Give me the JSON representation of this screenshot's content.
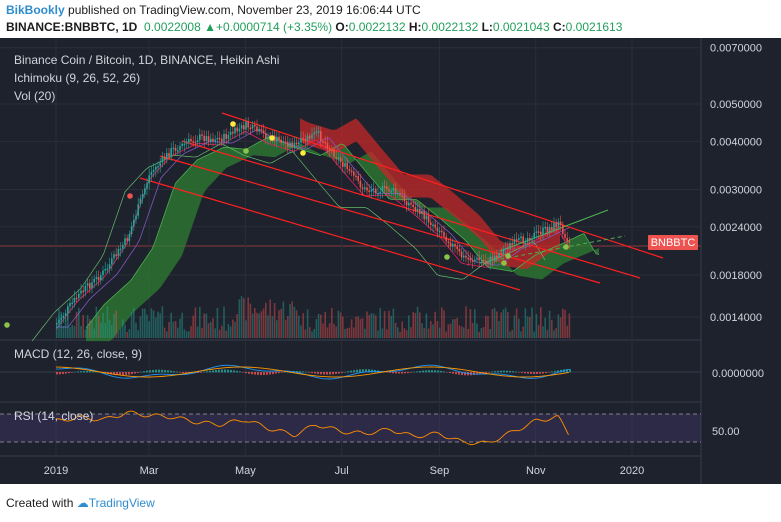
{
  "header": {
    "author": "BikBookly",
    "published_text": "published on TradingView.com, November 23, 2019 16:06:44 UTC",
    "symbol_line": "BINANCE:BNBBTC, 1D",
    "price": "0.0022008",
    "change": "+0.0000714 (+3.35%)",
    "open_label": "O:",
    "open": "0.0022132",
    "high_label": "H:",
    "high": "0.0022132",
    "low_label": "L:",
    "low": "0.0021043",
    "close_label": "C:",
    "close": "0.0021613"
  },
  "footer": {
    "created_with": "Created with",
    "brand": "TradingView"
  },
  "colors": {
    "background": "#1e222d",
    "bull": "#26a69a",
    "bear": "#ef5350",
    "channel": "#ff2020",
    "accent_green": "#27ae60"
  },
  "chart_data": {
    "type": "line",
    "legend": [
      "Binance Coin / Bitcoin, 1D, BINANCE, Heikin Ashi",
      "Ichimoku (9, 26, 52, 26)",
      "Vol (20)"
    ],
    "price_tag": "BNBBTC",
    "y_ticks": [
      "0.0070000",
      "0.0050000",
      "0.0040000",
      "0.0030000",
      "0.0024000",
      "0.0018000",
      "0.0014000"
    ],
    "x_ticks": [
      "2019",
      "Mar",
      "May",
      "Jul",
      "Sep",
      "Nov",
      "2020"
    ],
    "price_series": {
      "name": "BNBBTC",
      "x": [
        "2019-01-01",
        "2019-01-15",
        "2019-02-01",
        "2019-02-15",
        "2019-03-01",
        "2019-03-15",
        "2019-04-01",
        "2019-04-15",
        "2019-05-01",
        "2019-05-15",
        "2019-06-01",
        "2019-06-15",
        "2019-07-01",
        "2019-07-15",
        "2019-08-01",
        "2019-08-15",
        "2019-09-01",
        "2019-09-15",
        "2019-10-01",
        "2019-10-15",
        "2019-11-01",
        "2019-11-15",
        "2019-11-23"
      ],
      "y": [
        0.00135,
        0.0016,
        0.00185,
        0.00225,
        0.0033,
        0.0038,
        0.0041,
        0.00405,
        0.0044,
        0.0041,
        0.0039,
        0.0042,
        0.0035,
        0.003,
        0.003,
        0.0027,
        0.00235,
        0.002,
        0.00195,
        0.00215,
        0.0023,
        0.00245,
        0.00216
      ]
    },
    "macd_panel": {
      "legend": "MACD (12, 26, close, 9)",
      "y_tick": "0.0000000"
    },
    "rsi_panel": {
      "legend": "RSI (14, close)",
      "y_tick": "50.00",
      "values": [
        60,
        65,
        62,
        72,
        68,
        66,
        58,
        55,
        62,
        50,
        40,
        55,
        45,
        42,
        48,
        38,
        42,
        30,
        28,
        42,
        60,
        66,
        38
      ]
    }
  }
}
